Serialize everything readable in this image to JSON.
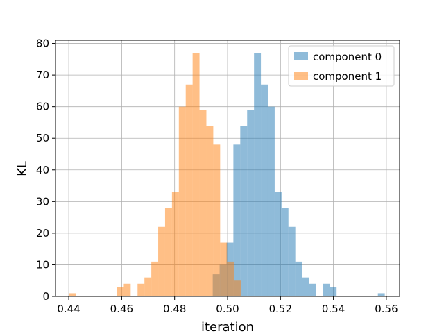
{
  "chart_data": {
    "type": "bar",
    "title": "",
    "xlabel": "iteration",
    "ylabel": "KL",
    "xlim": [
      0.435,
      0.565
    ],
    "ylim": [
      0,
      81
    ],
    "grid": true,
    "legend_position": "top-right",
    "xticks": [
      0.44,
      0.46,
      0.48,
      0.5,
      0.52,
      0.54,
      0.56
    ],
    "xtick_labels": [
      "0.44",
      "0.46",
      "0.48",
      "0.50",
      "0.52",
      "0.54",
      "0.56"
    ],
    "yticks": [
      0,
      10,
      20,
      30,
      40,
      50,
      60,
      70,
      80
    ],
    "ytick_labels": [
      "0",
      "10",
      "20",
      "30",
      "40",
      "50",
      "60",
      "70",
      "80"
    ],
    "series": [
      {
        "name": "component 0",
        "color": "#1f77b4",
        "opacity": 0.5,
        "bin_width": 0.0026,
        "bins": [
          {
            "x": 0.4944,
            "y": 7
          },
          {
            "x": 0.497,
            "y": 10
          },
          {
            "x": 0.4996,
            "y": 17
          },
          {
            "x": 0.5022,
            "y": 48
          },
          {
            "x": 0.5048,
            "y": 54
          },
          {
            "x": 0.5074,
            "y": 59
          },
          {
            "x": 0.51,
            "y": 77
          },
          {
            "x": 0.5126,
            "y": 67
          },
          {
            "x": 0.5152,
            "y": 60
          },
          {
            "x": 0.5178,
            "y": 33
          },
          {
            "x": 0.5204,
            "y": 28
          },
          {
            "x": 0.523,
            "y": 22
          },
          {
            "x": 0.5256,
            "y": 11
          },
          {
            "x": 0.5282,
            "y": 6
          },
          {
            "x": 0.5308,
            "y": 4
          },
          {
            "x": 0.536,
            "y": 4
          },
          {
            "x": 0.5386,
            "y": 3
          },
          {
            "x": 0.5568,
            "y": 1
          }
        ]
      },
      {
        "name": "component 1",
        "color": "#ff7f0e",
        "opacity": 0.5,
        "bin_width": 0.0026,
        "bins": [
          {
            "x": 0.44,
            "y": 1
          },
          {
            "x": 0.4582,
            "y": 3
          },
          {
            "x": 0.4608,
            "y": 4
          },
          {
            "x": 0.466,
            "y": 4
          },
          {
            "x": 0.4686,
            "y": 6
          },
          {
            "x": 0.4712,
            "y": 11
          },
          {
            "x": 0.4738,
            "y": 22
          },
          {
            "x": 0.4764,
            "y": 28
          },
          {
            "x": 0.479,
            "y": 33
          },
          {
            "x": 0.4816,
            "y": 60
          },
          {
            "x": 0.4842,
            "y": 67
          },
          {
            "x": 0.4868,
            "y": 77
          },
          {
            "x": 0.4894,
            "y": 59
          },
          {
            "x": 0.492,
            "y": 54
          },
          {
            "x": 0.4946,
            "y": 48
          },
          {
            "x": 0.4972,
            "y": 17
          },
          {
            "x": 0.4998,
            "y": 11
          },
          {
            "x": 0.5024,
            "y": 5
          }
        ]
      }
    ]
  }
}
